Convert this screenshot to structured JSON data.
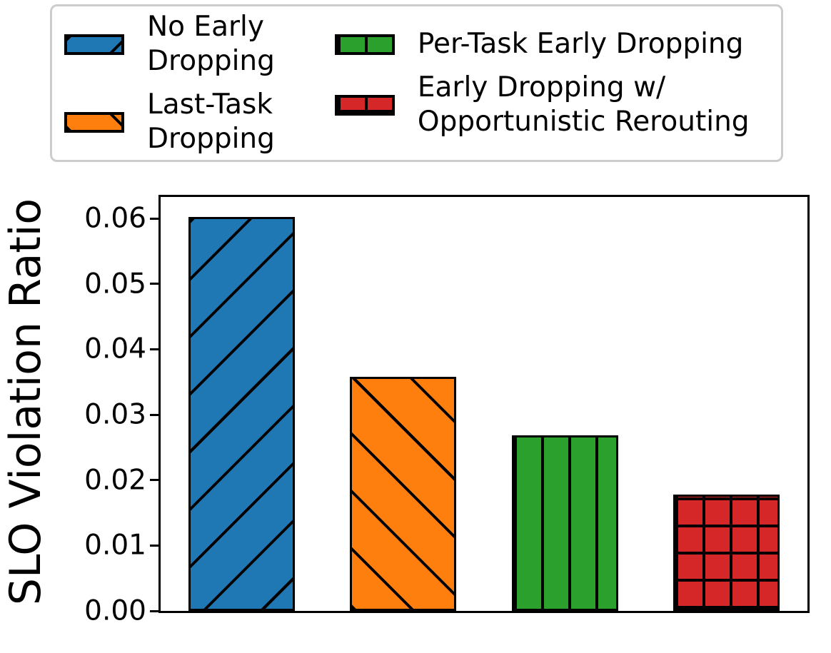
{
  "chart_data": {
    "type": "bar",
    "title": "",
    "xlabel": "",
    "ylabel": "SLO Violation Ratio",
    "categories": [
      "No Early Dropping",
      "Last-Task Dropping",
      "Per-Task Early Dropping",
      "Early Dropping w/ Opportunistic Rerouting"
    ],
    "values": [
      0.0603,
      0.0358,
      0.0268,
      0.0178
    ],
    "ylim": [
      0,
      0.0633
    ],
    "ytick_values": [
      0,
      0.01,
      0.02,
      0.03,
      0.04,
      0.05,
      0.06
    ],
    "ytick_labels": [
      "0.00",
      "0.01",
      "0.02",
      "0.03",
      "0.04",
      "0.05",
      "0.06"
    ],
    "grid": false,
    "x_tick_labels_shown": false,
    "bar_width_fraction": 0.66,
    "legend": {
      "position": "top",
      "ncol": 2,
      "border_color": "#cccccc"
    },
    "bars": [
      {
        "label": "No Early Dropping",
        "label_lines": [
          "No Early",
          "Dropping"
        ],
        "value": 0.0603,
        "color": "#1f77b4",
        "hatch": "slash",
        "legend_column": 0
      },
      {
        "label": "Last-Task Dropping",
        "label_lines": [
          "Last-Task",
          "Dropping"
        ],
        "value": 0.0358,
        "color": "#ff7f0e",
        "hatch": "backslash",
        "legend_column": 0
      },
      {
        "label": "Per-Task Early Dropping",
        "label_lines": [
          "Per-Task Early Dropping"
        ],
        "value": 0.0268,
        "color": "#2ca02c",
        "hatch": "vertical",
        "legend_column": 1
      },
      {
        "label": "Early Dropping w/ Opportunistic Rerouting",
        "label_lines": [
          "Early Dropping w/",
          "Opportunistic Rerouting"
        ],
        "value": 0.0178,
        "color": "#d62728",
        "hatch": "grid",
        "legend_column": 1
      }
    ]
  }
}
